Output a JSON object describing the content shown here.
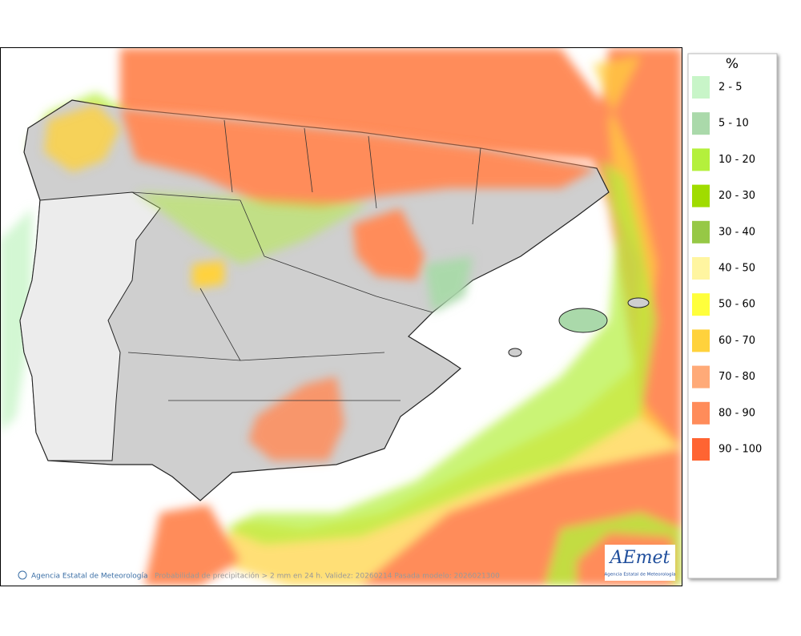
{
  "map": {
    "credit": "Agencia Estatal de Meteorología",
    "caption": "Probabilidad de precipitación > 2 mm en 24 h. Validez: 20260214 Pasada modelo: 2026021300",
    "logo": {
      "name": "AEmet",
      "subtitle": "Agencia Estatal de Meteorología"
    }
  },
  "legend": {
    "title": "%",
    "items": [
      {
        "label": "2 - 5",
        "color": "#c8f5c8"
      },
      {
        "label": "5 - 10",
        "color": "#aad9aa"
      },
      {
        "label": "10 - 20",
        "color": "#b4f03c"
      },
      {
        "label": "20 - 30",
        "color": "#a0dc00"
      },
      {
        "label": "30 - 40",
        "color": "#96c846"
      },
      {
        "label": "40 - 50",
        "color": "#fff5a0"
      },
      {
        "label": "50 - 60",
        "color": "#ffff3c"
      },
      {
        "label": "60 - 70",
        "color": "#ffd23c"
      },
      {
        "label": "70 - 80",
        "color": "#ffaa78"
      },
      {
        "label": "80 - 90",
        "color": "#ff8c5a"
      },
      {
        "label": "90 - 100",
        "color": "#ff6432"
      }
    ]
  }
}
